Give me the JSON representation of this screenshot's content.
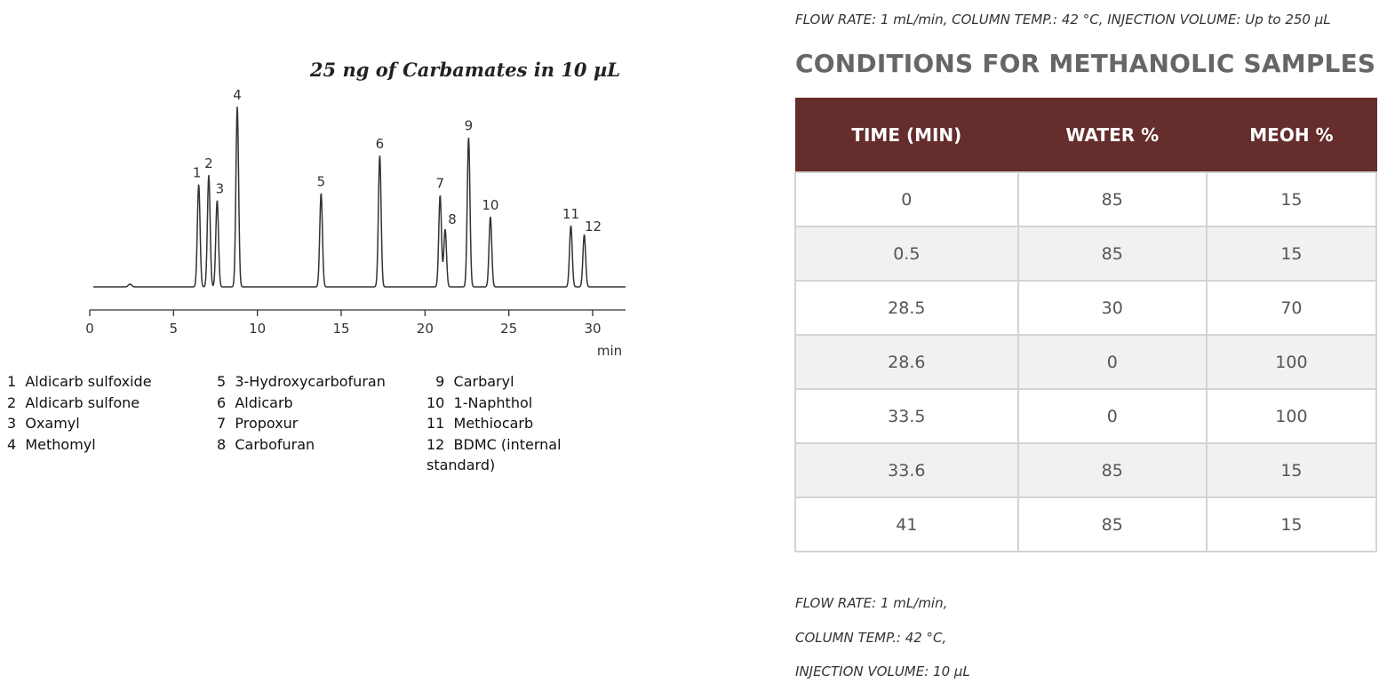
{
  "chart_data": {
    "type": "line",
    "title": "25 ng of Carbamates in 10 µL",
    "xlabel": "min",
    "xlim": [
      0,
      32
    ],
    "xticks": [
      0,
      5,
      10,
      15,
      20,
      25,
      30
    ],
    "peaks": [
      {
        "label": "1",
        "x": 6.5,
        "height": 0.57
      },
      {
        "label": "2",
        "x": 7.1,
        "height": 0.62
      },
      {
        "label": "3",
        "x": 7.6,
        "height": 0.48
      },
      {
        "label": "4",
        "x": 8.8,
        "height": 1.0
      },
      {
        "label": "5",
        "x": 13.8,
        "height": 0.52
      },
      {
        "label": "6",
        "x": 17.3,
        "height": 0.73
      },
      {
        "label": "7",
        "x": 20.9,
        "height": 0.51
      },
      {
        "label": "8",
        "x": 21.2,
        "height": 0.32
      },
      {
        "label": "9",
        "x": 22.6,
        "height": 0.83
      },
      {
        "label": "10",
        "x": 23.9,
        "height": 0.39
      },
      {
        "label": "11",
        "x": 28.7,
        "height": 0.34
      },
      {
        "label": "12",
        "x": 29.5,
        "height": 0.29
      }
    ]
  },
  "legend": {
    "col1": [
      "1  Aldicarb sulfoxide",
      "2  Aldicarb sulfone",
      "3  Oxamyl",
      "4  Methomyl"
    ],
    "col2": [
      "5  3-Hydroxycarbofuran",
      "6  Aldicarb",
      "7  Propoxur",
      "8  Carbofuran"
    ],
    "col3": [
      "  9  Carbaryl",
      "10  1-Naphthol",
      "11  Methiocarb",
      "12  BDMC (internal standard)"
    ]
  },
  "top_note": "FLOW RATE: 1 mL/min, COLUMN TEMP.: 42 °C, INJECTION VOLUME: Up to 250 µL",
  "section_title": "CONDITIONS FOR METHANOLIC SAMPLES",
  "table": {
    "headers": [
      "TIME (MIN)",
      "WATER %",
      "MEOH %"
    ],
    "rows": [
      [
        "0",
        "85",
        "15"
      ],
      [
        "0.5",
        "85",
        "15"
      ],
      [
        "28.5",
        "30",
        "70"
      ],
      [
        "28.6",
        "0",
        "100"
      ],
      [
        "33.5",
        "0",
        "100"
      ],
      [
        "33.6",
        "85",
        "15"
      ],
      [
        "41",
        "85",
        "15"
      ]
    ]
  },
  "bottom_notes": [
    "FLOW RATE: 1 mL/min,",
    "COLUMN TEMP.: 42 °C,",
    "INJECTION VOLUME: 10 µL"
  ]
}
